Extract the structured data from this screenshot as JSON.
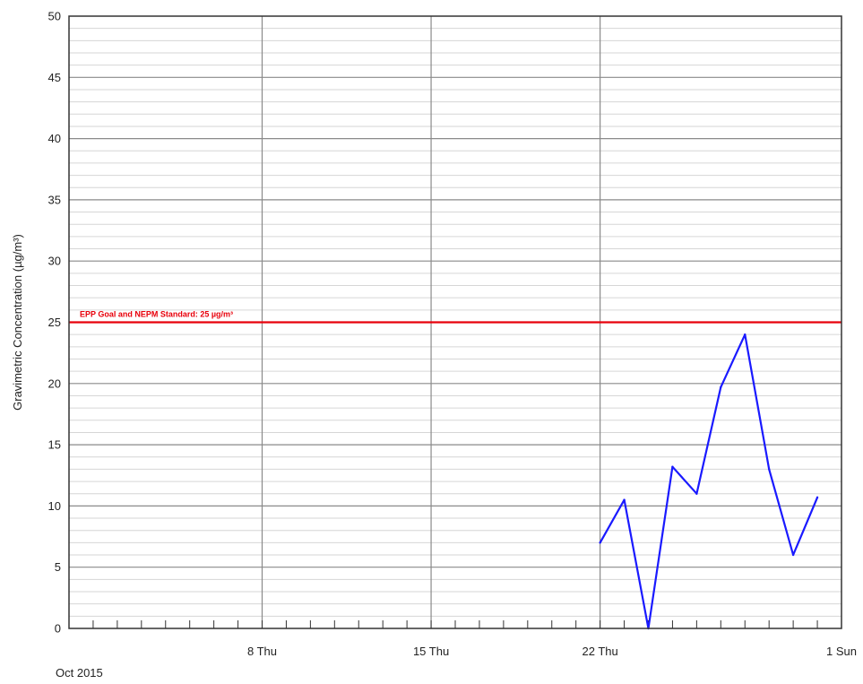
{
  "chart_data": {
    "type": "line",
    "title": "",
    "xlabel": "",
    "ylabel": "Gravimetric Concentration (µg/m³)",
    "period_label": "Oct 2015",
    "ylim": [
      0,
      50
    ],
    "xlim": [
      "2015-09-30",
      "2015-11-01"
    ],
    "yticks": [
      0,
      5,
      10,
      15,
      20,
      25,
      30,
      35,
      40,
      45,
      50
    ],
    "x_major_ticks": [
      {
        "date": "2015-10-08",
        "label": "8 Thu"
      },
      {
        "date": "2015-10-15",
        "label": "15 Thu"
      },
      {
        "date": "2015-10-22",
        "label": "22 Thu"
      },
      {
        "date": "2015-11-01",
        "label": "1 Sun"
      }
    ],
    "grid": true,
    "reference_line": {
      "value": 25,
      "label": "EPP Goal and NEPM Standard: 25 µg/m³",
      "color": "#e8000b"
    },
    "series": [
      {
        "color": "#1a1aff",
        "x": [
          "2015-10-22",
          "2015-10-23",
          "2015-10-24",
          "2015-10-25",
          "2015-10-26",
          "2015-10-27",
          "2015-10-28",
          "2015-10-29",
          "2015-10-30",
          "2015-10-31"
        ],
        "y": [
          7,
          10.5,
          0,
          13.2,
          11,
          19.7,
          24,
          13,
          6,
          10.7
        ]
      }
    ]
  }
}
